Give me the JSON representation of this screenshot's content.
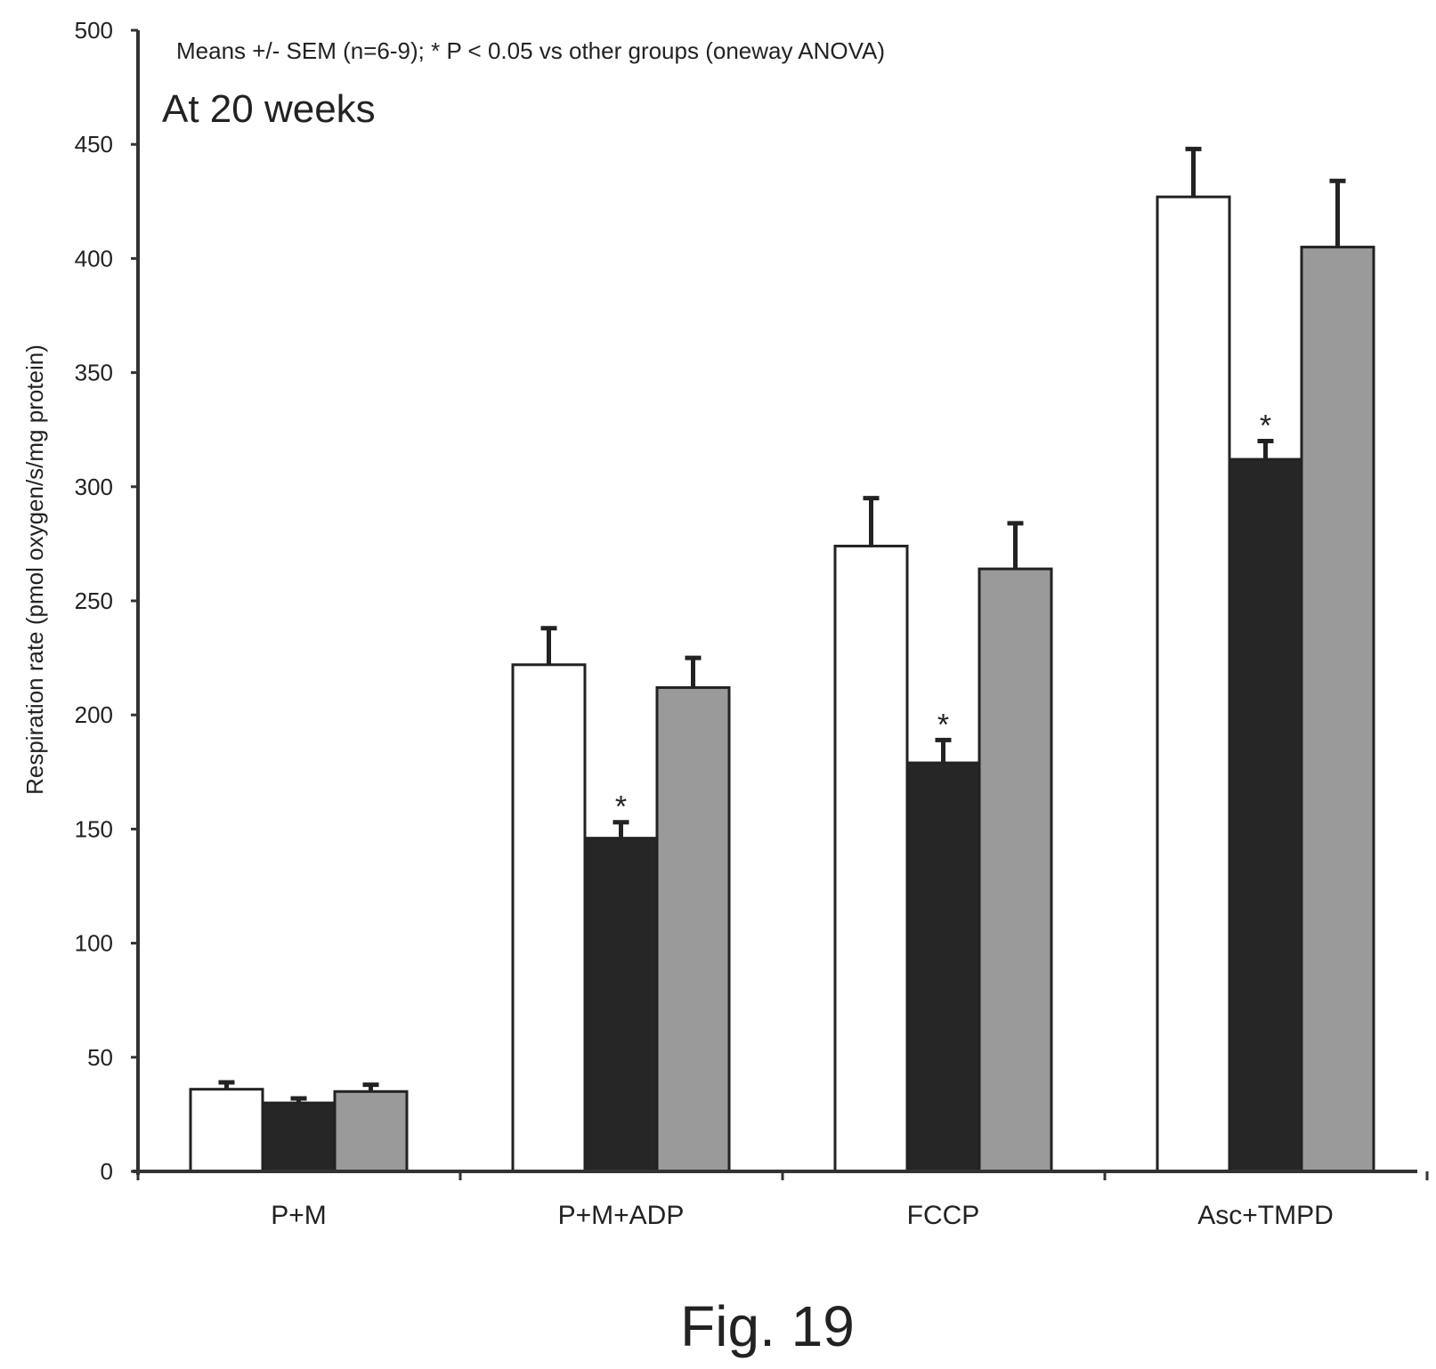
{
  "chart_data": {
    "type": "bar",
    "title": "At 20 weeks",
    "annotation": "Means +/- SEM (n=6-9); * P < 0.05 vs other groups (oneway ANOVA)",
    "xlabel": "",
    "ylabel": "Respiration rate (pmol oxygen/s/mg protein)",
    "ylim": [
      0,
      500
    ],
    "yticks": [
      0,
      50,
      100,
      150,
      200,
      250,
      300,
      350,
      400,
      450,
      500
    ],
    "categories": [
      "P+M",
      "P+M+ADP",
      "FCCP",
      "Asc+TMPD"
    ],
    "series": [
      {
        "name": "white",
        "color": "#ffffff",
        "values": [
          36,
          222,
          274,
          427
        ],
        "errors": [
          3,
          16,
          21,
          21
        ],
        "significant": [
          false,
          false,
          false,
          false
        ]
      },
      {
        "name": "black",
        "color": "#262626",
        "values": [
          30,
          146,
          179,
          312
        ],
        "errors": [
          2,
          7,
          10,
          8
        ],
        "significant": [
          false,
          true,
          true,
          true
        ]
      },
      {
        "name": "gray",
        "color": "#9a9a9a",
        "values": [
          35,
          212,
          264,
          405
        ],
        "errors": [
          3,
          13,
          20,
          29
        ],
        "significant": [
          false,
          false,
          false,
          false
        ]
      }
    ],
    "significance_marker": "*",
    "grid": false,
    "legend": "none"
  },
  "caption": "Fig. 19"
}
